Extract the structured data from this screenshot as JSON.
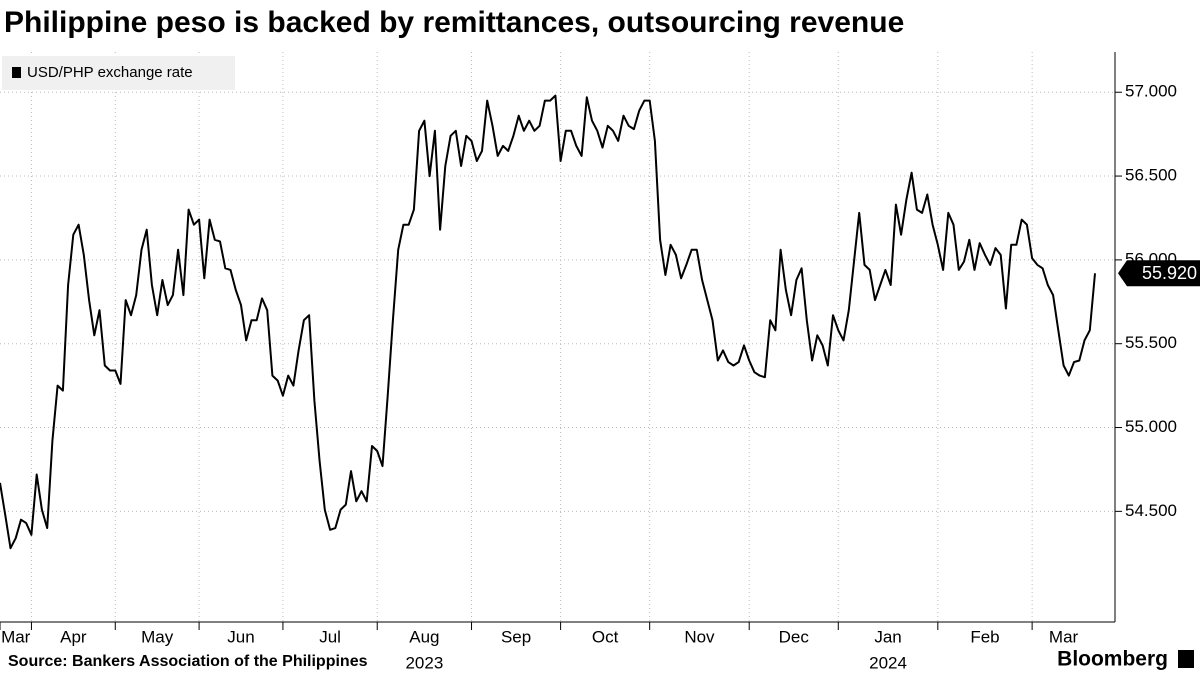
{
  "chart_data": {
    "type": "line",
    "title": "Philippine peso is backed by remittances, outsourcing revenue",
    "source": "Source: Bankers Association of the Philippines",
    "branding": "Bloomberg",
    "categories": [
      "Mar",
      null,
      null,
      null,
      null,
      null,
      "Apr",
      null,
      null,
      null,
      null,
      null,
      null,
      null,
      null,
      null,
      null,
      null,
      null,
      null,
      null,
      null,
      "May",
      null,
      null,
      null,
      null,
      null,
      null,
      null,
      null,
      null,
      null,
      null,
      null,
      null,
      null,
      null,
      "Jun",
      null,
      null,
      null,
      null,
      null,
      null,
      null,
      null,
      null,
      null,
      null,
      null,
      null,
      null,
      null,
      "Jul",
      null,
      null,
      null,
      null,
      null,
      null,
      null,
      null,
      null,
      null,
      null,
      null,
      null,
      null,
      null,
      null,
      null,
      "Aug",
      null,
      null,
      null,
      null,
      null,
      null,
      null,
      null,
      null,
      null,
      null,
      null,
      null,
      null,
      null,
      null,
      null,
      "Sep",
      null,
      null,
      null,
      null,
      null,
      null,
      null,
      null,
      null,
      null,
      null,
      null,
      null,
      null,
      null,
      null,
      "Oct",
      null,
      null,
      null,
      null,
      null,
      null,
      null,
      null,
      null,
      null,
      null,
      null,
      null,
      null,
      null,
      null,
      "Nov",
      null,
      null,
      null,
      null,
      null,
      null,
      null,
      null,
      null,
      null,
      null,
      null,
      null,
      null,
      null,
      null,
      null,
      null,
      "Dec",
      null,
      null,
      null,
      null,
      null,
      null,
      null,
      null,
      null,
      null,
      null,
      null,
      null,
      null,
      null,
      null,
      "Jan",
      null,
      null,
      null,
      null,
      null,
      null,
      null,
      null,
      null,
      null,
      null,
      null,
      null,
      null,
      null,
      null,
      null,
      null,
      "Feb",
      null,
      null,
      null,
      null,
      null,
      null,
      null,
      null,
      null,
      null,
      null,
      null,
      null,
      null,
      null,
      null,
      null,
      "Mar",
      null,
      null,
      null,
      null,
      null,
      null,
      null,
      null,
      null,
      null,
      null,
      null
    ],
    "categories2": [
      null,
      null,
      null,
      null,
      null,
      null,
      null,
      null,
      null,
      null,
      null,
      null,
      null,
      null,
      null,
      null,
      null,
      null,
      null,
      null,
      null,
      null,
      null,
      null,
      null,
      null,
      null,
      null,
      null,
      null,
      null,
      null,
      null,
      null,
      null,
      null,
      null,
      null,
      null,
      null,
      null,
      null,
      null,
      null,
      null,
      null,
      null,
      null,
      null,
      null,
      null,
      null,
      null,
      null,
      null,
      null,
      null,
      null,
      null,
      null,
      null,
      null,
      null,
      null,
      null,
      null,
      null,
      null,
      null,
      null,
      null,
      null,
      "2023",
      null,
      null,
      null,
      null,
      null,
      null,
      null,
      null,
      null,
      null,
      null,
      null,
      null,
      null,
      null,
      null,
      null,
      null,
      null,
      null,
      null,
      null,
      null,
      null,
      null,
      null,
      null,
      null,
      null,
      null,
      null,
      null,
      null,
      null,
      null,
      null,
      null,
      null,
      null,
      null,
      null,
      null,
      null,
      null,
      null,
      null,
      null,
      null,
      null,
      null,
      null,
      null,
      null,
      null,
      null,
      null,
      null,
      null,
      null,
      null,
      null,
      null,
      null,
      null,
      null,
      null,
      null,
      null,
      null,
      null,
      null,
      null,
      null,
      null,
      null,
      null,
      null,
      null,
      null,
      null,
      null,
      null,
      null,
      null,
      null,
      null,
      null,
      null,
      null,
      null,
      null,
      null,
      null,
      null,
      null,
      null,
      null,
      null,
      null,
      null,
      null,
      null,
      "2024",
      null,
      null,
      null,
      null,
      null,
      null,
      null,
      null,
      null,
      null,
      null,
      null,
      null,
      null,
      null,
      null,
      null,
      null,
      null,
      null,
      null,
      null,
      null,
      null,
      null,
      null,
      null,
      null,
      null,
      null
    ],
    "series": [
      {
        "name": "USD/PHP exchange rate",
        "color": "#000000",
        "values": [
          54.67,
          54.48,
          54.28,
          54.34,
          54.45,
          54.43,
          54.36,
          54.72,
          54.51,
          54.4,
          54.92,
          55.25,
          55.22,
          55.85,
          56.15,
          56.21,
          56.03,
          55.76,
          55.55,
          55.7,
          55.37,
          55.34,
          55.34,
          55.26,
          55.76,
          55.67,
          55.79,
          56.06,
          56.18,
          55.85,
          55.67,
          55.88,
          55.73,
          55.79,
          56.06,
          55.79,
          56.3,
          56.21,
          56.24,
          55.89,
          56.24,
          56.12,
          56.11,
          55.95,
          55.94,
          55.82,
          55.73,
          55.52,
          55.64,
          55.64,
          55.77,
          55.7,
          55.31,
          55.28,
          55.19,
          55.31,
          55.25,
          55.46,
          55.64,
          55.67,
          55.16,
          54.8,
          54.51,
          54.39,
          54.4,
          54.51,
          54.54,
          54.74,
          54.56,
          54.62,
          54.56,
          54.89,
          54.86,
          54.77,
          55.19,
          55.64,
          56.06,
          56.21,
          56.21,
          56.3,
          56.77,
          56.83,
          56.5,
          56.77,
          56.18,
          56.56,
          56.74,
          56.77,
          56.56,
          56.74,
          56.71,
          56.59,
          56.65,
          56.95,
          56.8,
          56.62,
          56.68,
          56.65,
          56.74,
          56.86,
          56.77,
          56.83,
          56.77,
          56.8,
          56.95,
          56.95,
          56.98,
          56.59,
          56.77,
          56.77,
          56.68,
          56.62,
          56.97,
          56.83,
          56.77,
          56.67,
          56.8,
          56.77,
          56.71,
          56.86,
          56.8,
          56.78,
          56.89,
          56.95,
          56.95,
          56.71,
          56.12,
          55.91,
          56.09,
          56.03,
          55.89,
          55.97,
          56.06,
          56.06,
          55.88,
          55.76,
          55.64,
          55.4,
          55.46,
          55.39,
          55.37,
          55.39,
          55.49,
          55.4,
          55.33,
          55.31,
          55.3,
          55.64,
          55.58,
          56.06,
          55.82,
          55.67,
          55.88,
          55.95,
          55.64,
          55.4,
          55.55,
          55.49,
          55.37,
          55.67,
          55.58,
          55.52,
          55.7,
          55.99,
          56.28,
          55.97,
          55.94,
          55.76,
          55.85,
          55.94,
          55.85,
          56.33,
          56.15,
          56.36,
          56.52,
          56.3,
          56.28,
          56.39,
          56.21,
          56.09,
          55.94,
          56.28,
          56.21,
          55.94,
          55.99,
          56.12,
          55.94,
          56.1,
          56.03,
          55.97,
          56.07,
          56.03,
          55.71,
          56.09,
          56.09,
          56.24,
          56.21,
          56.01,
          55.97,
          55.95,
          55.85,
          55.79,
          55.58,
          55.37,
          55.31,
          55.39,
          55.4,
          55.52,
          55.58,
          55.92
        ],
        "value_labels": [
          null,
          null,
          null,
          null,
          null,
          null,
          null,
          null,
          null,
          null,
          null,
          null,
          null,
          null,
          null,
          null,
          null,
          null,
          null,
          null,
          null,
          null,
          null,
          null,
          null,
          null,
          null,
          null,
          null,
          null,
          null,
          null,
          null,
          null,
          null,
          null,
          null,
          null,
          null,
          null,
          null,
          null,
          null,
          null,
          null,
          null,
          null,
          null,
          null,
          null,
          null,
          null,
          null,
          null,
          null,
          null,
          null,
          null,
          null,
          null,
          null,
          null,
          null,
          null,
          null,
          null,
          null,
          null,
          null,
          null,
          null,
          null,
          null,
          null,
          null,
          null,
          null,
          null,
          null,
          null,
          null,
          null,
          null,
          null,
          null,
          null,
          null,
          null,
          null,
          null,
          null,
          null,
          null,
          null,
          null,
          null,
          null,
          null,
          null,
          null,
          null,
          null,
          null,
          null,
          null,
          null,
          null,
          null,
          null,
          null,
          null,
          null,
          null,
          null,
          null,
          null,
          null,
          null,
          null,
          null,
          null,
          null,
          null,
          null,
          null,
          null,
          null,
          null,
          null,
          null,
          null,
          null,
          null,
          null,
          null,
          null,
          null,
          null,
          null,
          null,
          null,
          null,
          null,
          null,
          null,
          null,
          null,
          null,
          null,
          null,
          null,
          null,
          null,
          null,
          null,
          null,
          null,
          null,
          null,
          null,
          null,
          null,
          null,
          null,
          null,
          null,
          null,
          null,
          null,
          null,
          null,
          null,
          null,
          null,
          null,
          null,
          null,
          null,
          null,
          null,
          null,
          null,
          null,
          null,
          null,
          null,
          null,
          null,
          null,
          null,
          null,
          null,
          null,
          null,
          null,
          null,
          null,
          null,
          null,
          null,
          null,
          null,
          null,
          null,
          null,
          null,
          null,
          null,
          null,
          "55.920"
        ]
      }
    ],
    "ylim": [
      53.84,
      57.24
    ],
    "yticks": [
      {
        "value": 54.5,
        "label": "54.500"
      },
      {
        "value": 55,
        "label": "55.000"
      },
      {
        "value": 55.5,
        "label": "55.500"
      },
      {
        "value": 56,
        "label": "56.000"
      },
      {
        "value": 56.5,
        "label": "56.500"
      },
      {
        "value": 57,
        "label": "57.000"
      }
    ],
    "grid": true,
    "legend": "top-left"
  }
}
